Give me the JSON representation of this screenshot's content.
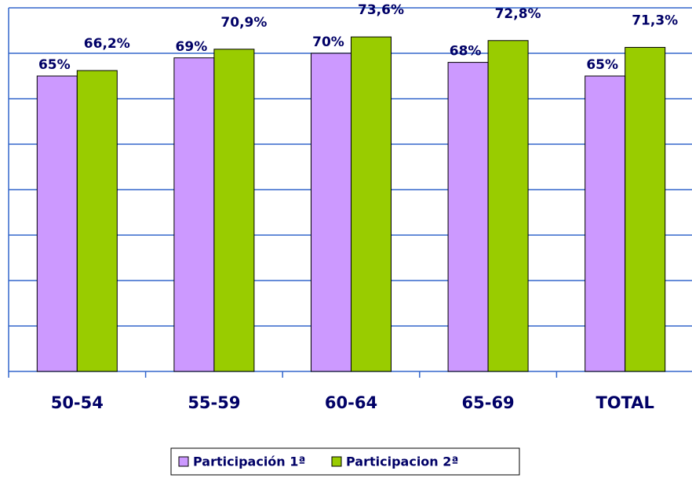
{
  "chart_data": {
    "type": "bar",
    "categories": [
      "50-54",
      "55-59",
      "60-64",
      "65-69",
      "TOTAL"
    ],
    "series": [
      {
        "name": "Participación 1ª",
        "color": "#cc99ff",
        "values": [
          65,
          69,
          70,
          68,
          65
        ],
        "value_labels": [
          "65%",
          "69%",
          "70%",
          "68%",
          "65%"
        ]
      },
      {
        "name": "Participacion 2ª",
        "color": "#99cc00",
        "values": [
          66.2,
          70.9,
          73.6,
          72.8,
          71.3
        ],
        "value_labels": [
          "66,2%",
          "70,9%",
          "73,6%",
          "72,8%",
          "71,3%"
        ]
      }
    ],
    "ylim": [
      0,
      80
    ],
    "yticks": [
      0,
      10,
      20,
      30,
      40,
      50,
      60,
      70,
      80
    ],
    "grid": true,
    "grid_color": "#3366cc",
    "legend": "bottom"
  }
}
